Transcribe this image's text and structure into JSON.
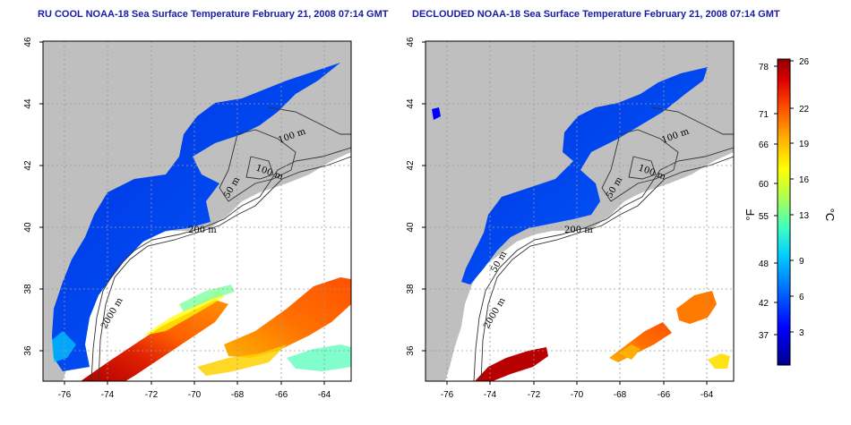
{
  "panels": [
    {
      "title": "RU COOL NOAA-18 Sea Surface Temperature February 21, 2008 07:14 GMT",
      "contour_labels": [
        "100 m",
        "100 m",
        "50 m",
        "200 m",
        "2000 m"
      ]
    },
    {
      "title": "DECLOUDED NOAA-18 Sea Surface Temperature February 21, 2008 07:14 GMT",
      "contour_labels": [
        "100 m",
        "100 m",
        "50 m",
        "200 m",
        "50 m",
        "2000 m"
      ]
    }
  ],
  "axes": {
    "lon_ticks": [
      "-76",
      "-74",
      "-72",
      "-70",
      "-68",
      "-66",
      "-64"
    ],
    "lat_ticks": [
      "46",
      "44",
      "42",
      "40",
      "38",
      "36"
    ]
  },
  "colorbar": {
    "fahrenheit_ticks": [
      "78",
      "71",
      "66",
      "60",
      "55",
      "48",
      "42",
      "37"
    ],
    "celsius_ticks": [
      "26",
      "22",
      "19",
      "16",
      "13",
      "9",
      "6",
      "3"
    ],
    "f_unit": "°F",
    "c_unit": "°C",
    "colors": [
      "#00008c",
      "#0000ff",
      "#0060ff",
      "#00b0ff",
      "#00ffff",
      "#60ff9f",
      "#bfff40",
      "#ffff00",
      "#ffb000",
      "#ff5000",
      "#e00000",
      "#900000"
    ]
  },
  "colors": {
    "land": "#bfbfbf",
    "water_missing": "#ffffff",
    "title_color": "#1a1aa8",
    "grid": "#9a9a9a"
  }
}
